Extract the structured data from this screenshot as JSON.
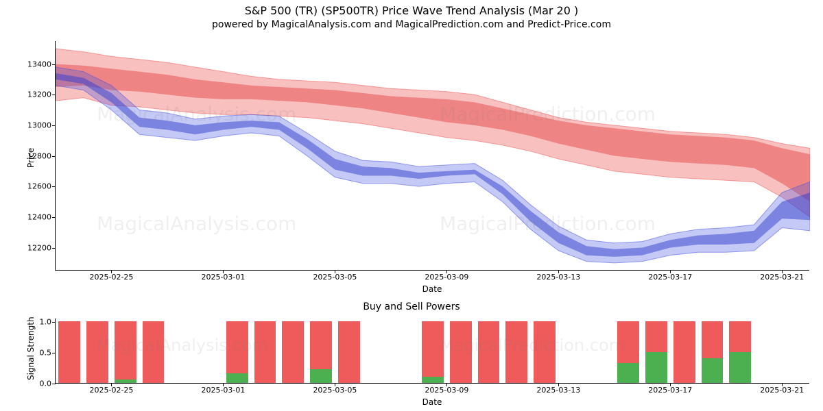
{
  "main_chart": {
    "title": "S&P 500 (TR) (SP500TR) Price Wave Trend Analysis (Mar 20 )",
    "subtitle": "powered by MagicalAnalysis.com and MagicalPrediction.com and Predict-Price.com",
    "ylabel": "Price",
    "xlabel": "Date",
    "title_fontsize": 16,
    "subtitle_fontsize": 14,
    "label_fontsize": 12,
    "tick_fontsize": 11,
    "ylim": [
      12050,
      13550
    ],
    "yticks": [
      12200,
      12400,
      12600,
      12800,
      13000,
      13200,
      13400
    ],
    "xlim": [
      0,
      27
    ],
    "xticks": [
      {
        "pos": 2,
        "label": "2025-02-25"
      },
      {
        "pos": 6,
        "label": "2025-03-01"
      },
      {
        "pos": 10,
        "label": "2025-03-05"
      },
      {
        "pos": 14,
        "label": "2025-03-09"
      },
      {
        "pos": 18,
        "label": "2025-03-13"
      },
      {
        "pos": 22,
        "label": "2025-03-17"
      },
      {
        "pos": 26,
        "label": "2025-03-21"
      }
    ],
    "red_band": {
      "upper": [
        13500,
        13480,
        13450,
        13430,
        13410,
        13380,
        13350,
        13320,
        13300,
        13290,
        13280,
        13260,
        13240,
        13230,
        13220,
        13200,
        13150,
        13100,
        13050,
        13020,
        13000,
        12980,
        12960,
        12950,
        12940,
        12920,
        12880,
        12850
      ],
      "lower": [
        13160,
        13180,
        13130,
        13120,
        13100,
        13080,
        13070,
        13070,
        13060,
        13050,
        13030,
        13010,
        12980,
        12950,
        12920,
        12900,
        12870,
        12830,
        12780,
        12740,
        12700,
        12680,
        12660,
        12650,
        12640,
        12630,
        12530,
        12400
      ],
      "fill_color": "#ef5a5a",
      "fill_opacity": 0.38,
      "edge_color": "#ef5a5a",
      "edge_opacity": 0.55
    },
    "red_band_inner": {
      "upper": [
        13400,
        13390,
        13370,
        13350,
        13330,
        13300,
        13280,
        13260,
        13250,
        13240,
        13230,
        13210,
        13190,
        13180,
        13170,
        13150,
        13110,
        13070,
        13030,
        13000,
        12980,
        12960,
        12940,
        12930,
        12920,
        12900,
        12850,
        12810
      ],
      "lower": [
        13250,
        13260,
        13230,
        13220,
        13200,
        13180,
        13170,
        13170,
        13160,
        13150,
        13130,
        13110,
        13080,
        13050,
        13020,
        13000,
        12970,
        12930,
        12880,
        12840,
        12800,
        12780,
        12760,
        12750,
        12740,
        12720,
        12620,
        12500
      ],
      "fill_color": "#e23b3b",
      "fill_opacity": 0.45
    },
    "blue_band": {
      "upper": [
        13380,
        13350,
        13260,
        13100,
        13080,
        13040,
        13060,
        13070,
        13060,
        12950,
        12830,
        12770,
        12760,
        12730,
        12740,
        12750,
        12640,
        12480,
        12340,
        12250,
        12230,
        12240,
        12290,
        12320,
        12330,
        12350,
        12560,
        12630
      ],
      "lower": [
        13260,
        13230,
        13100,
        12940,
        12920,
        12900,
        12930,
        12950,
        12930,
        12800,
        12660,
        12620,
        12620,
        12600,
        12620,
        12630,
        12500,
        12320,
        12180,
        12110,
        12100,
        12110,
        12150,
        12170,
        12170,
        12180,
        12330,
        12310
      ],
      "fill_color": "#4a56e0",
      "fill_opacity": 0.32,
      "edge_color": "#4a56e0",
      "edge_opacity": 0.55
    },
    "blue_band_inner": {
      "upper": [
        13340,
        13310,
        13210,
        13050,
        13030,
        13000,
        13020,
        13030,
        13020,
        12910,
        12780,
        12730,
        12720,
        12690,
        12700,
        12710,
        12600,
        12440,
        12300,
        12210,
        12190,
        12200,
        12250,
        12280,
        12290,
        12310,
        12500,
        12560
      ],
      "lower": [
        13300,
        13270,
        13150,
        12990,
        12970,
        12940,
        12970,
        12990,
        12970,
        12850,
        12710,
        12670,
        12670,
        12650,
        12670,
        12680,
        12550,
        12370,
        12230,
        12150,
        12140,
        12150,
        12200,
        12220,
        12220,
        12230,
        12390,
        12380
      ],
      "fill_color": "#3440d0",
      "fill_opacity": 0.5
    },
    "background_color": "#ffffff",
    "spine_color": "#000000"
  },
  "sub_chart": {
    "title": "Buy and Sell Powers",
    "ylabel": "Signal Strength",
    "xlabel": "Date",
    "ylim": [
      0,
      1.05
    ],
    "yticks": [
      0.0,
      0.5,
      1.0
    ],
    "xlim": [
      0,
      27
    ],
    "xticks": [
      {
        "pos": 2,
        "label": "2025-02-25"
      },
      {
        "pos": 6,
        "label": "2025-03-01"
      },
      {
        "pos": 10,
        "label": "2025-03-05"
      },
      {
        "pos": 14,
        "label": "2025-03-09"
      },
      {
        "pos": 18,
        "label": "2025-03-13"
      },
      {
        "pos": 22,
        "label": "2025-03-17"
      },
      {
        "pos": 26,
        "label": "2025-03-21"
      }
    ],
    "bars": [
      {
        "x": 0.5,
        "red": 1.0,
        "green": 0.0
      },
      {
        "x": 1.5,
        "red": 1.0,
        "green": 0.0
      },
      {
        "x": 2.5,
        "red": 1.0,
        "green": 0.05
      },
      {
        "x": 3.5,
        "red": 1.0,
        "green": 0.0
      },
      {
        "x": 6.5,
        "red": 1.0,
        "green": 0.15
      },
      {
        "x": 7.5,
        "red": 1.0,
        "green": 0.0
      },
      {
        "x": 8.5,
        "red": 1.0,
        "green": 0.0
      },
      {
        "x": 9.5,
        "red": 1.0,
        "green": 0.22
      },
      {
        "x": 10.5,
        "red": 1.0,
        "green": 0.0
      },
      {
        "x": 13.5,
        "red": 1.0,
        "green": 0.1
      },
      {
        "x": 14.5,
        "red": 1.0,
        "green": 0.0
      },
      {
        "x": 15.5,
        "red": 1.0,
        "green": 0.0
      },
      {
        "x": 16.5,
        "red": 1.0,
        "green": 0.0
      },
      {
        "x": 17.5,
        "red": 1.0,
        "green": 0.0
      },
      {
        "x": 20.5,
        "red": 1.0,
        "green": 0.32
      },
      {
        "x": 21.5,
        "red": 1.0,
        "green": 0.5
      },
      {
        "x": 22.5,
        "red": 1.0,
        "green": 0.0
      },
      {
        "x": 23.5,
        "red": 1.0,
        "green": 0.4
      },
      {
        "x": 24.5,
        "red": 1.0,
        "green": 0.5
      }
    ],
    "bar_width": 0.78,
    "red_color": "#ef5a5a",
    "green_color": "#4caf50",
    "background_color": "#ffffff",
    "spine_color": "#000000"
  },
  "watermarks": {
    "text_pairs": [
      "MagicalAnalysis.com",
      "MagicalPrediction.com"
    ],
    "color": "rgba(120,120,120,0.12)",
    "fontsize": 28
  }
}
